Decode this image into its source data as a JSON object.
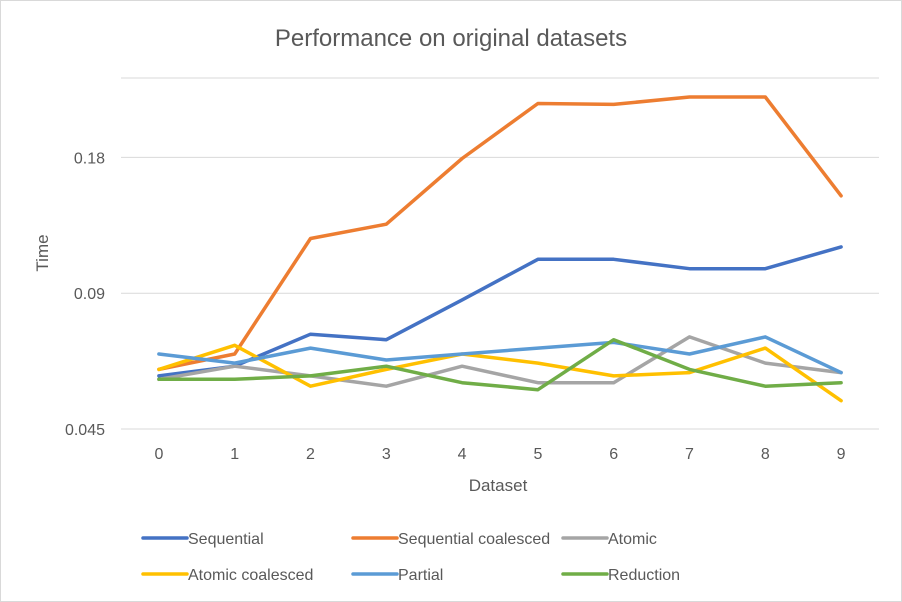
{
  "chart_data": {
    "type": "line",
    "title": "Performance on original datasets",
    "xlabel": "Dataset",
    "ylabel": "Time",
    "x": [
      0,
      1,
      2,
      3,
      4,
      5,
      6,
      7,
      8,
      9
    ],
    "x_tick_labels": [
      "0",
      "1",
      "2",
      "3",
      "4",
      "5",
      "6",
      "7",
      "8",
      "9"
    ],
    "y_tick_labels": [
      "0.045",
      "0.09",
      "0.18"
    ],
    "y_scale": "log",
    "ylim": [
      0.045,
      0.27
    ],
    "grid": true,
    "legend_position": "bottom",
    "series": [
      {
        "name": "Sequential",
        "color": "#4472C4",
        "values": [
          0.059,
          0.062,
          0.073,
          0.071,
          0.087,
          0.107,
          0.107,
          0.102,
          0.102,
          0.114
        ]
      },
      {
        "name": "Sequential coalesced",
        "color": "#ED7D31",
        "values": [
          0.061,
          0.066,
          0.119,
          0.128,
          0.179,
          0.237,
          0.236,
          0.245,
          0.245,
          0.148
        ]
      },
      {
        "name": "Atomic",
        "color": "#A5A5A5",
        "values": [
          0.058,
          0.062,
          0.059,
          0.056,
          0.062,
          0.057,
          0.057,
          0.072,
          0.063,
          0.06
        ]
      },
      {
        "name": "Atomic coalesced",
        "color": "#FFC000",
        "values": [
          0.061,
          0.069,
          0.056,
          0.061,
          0.066,
          0.063,
          0.059,
          0.06,
          0.068,
          0.052
        ]
      },
      {
        "name": "Partial",
        "color": "#5B9BD5",
        "values": [
          0.066,
          0.063,
          0.068,
          0.064,
          0.066,
          0.068,
          0.07,
          0.066,
          0.072,
          0.06
        ]
      },
      {
        "name": "Reduction",
        "color": "#70AD47",
        "values": [
          0.058,
          0.058,
          0.059,
          0.062,
          0.057,
          0.055,
          0.071,
          0.061,
          0.056,
          0.057
        ]
      }
    ]
  }
}
